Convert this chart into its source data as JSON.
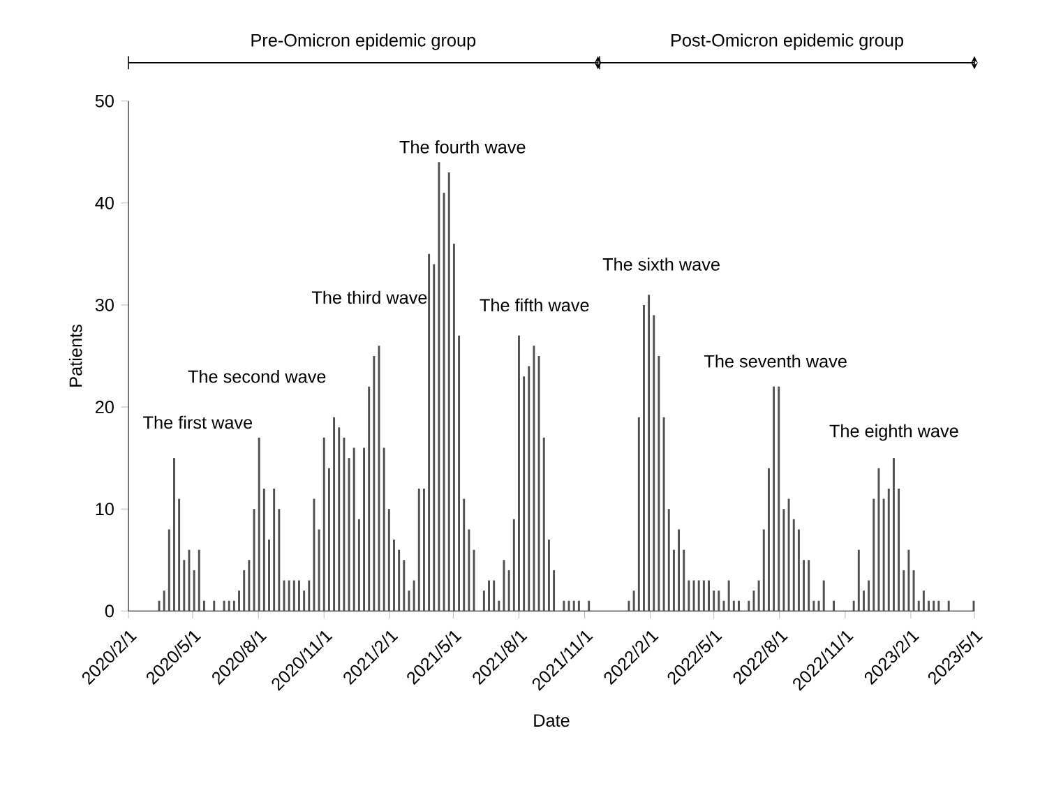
{
  "chart_data": {
    "type": "bar",
    "xlabel": "Date",
    "ylabel": "Patients",
    "color": "#505050",
    "x": [
      "2020-03-15",
      "2020-03-22",
      "2020-03-29",
      "2020-04-05",
      "2020-04-12",
      "2020-04-19",
      "2020-04-26",
      "2020-05-03",
      "2020-05-10",
      "2020-05-17",
      "2020-05-31",
      "2020-06-14",
      "2020-06-21",
      "2020-06-28",
      "2020-07-05",
      "2020-07-12",
      "2020-07-19",
      "2020-07-26",
      "2020-08-02",
      "2020-08-09",
      "2020-08-16",
      "2020-08-23",
      "2020-08-30",
      "2020-09-06",
      "2020-09-13",
      "2020-09-20",
      "2020-09-27",
      "2020-10-04",
      "2020-10-11",
      "2020-10-18",
      "2020-10-25",
      "2020-11-01",
      "2020-11-08",
      "2020-11-15",
      "2020-11-22",
      "2020-11-29",
      "2020-12-06",
      "2020-12-13",
      "2020-12-20",
      "2020-12-27",
      "2021-01-03",
      "2021-01-10",
      "2021-01-17",
      "2021-01-24",
      "2021-01-31",
      "2021-02-07",
      "2021-02-14",
      "2021-02-21",
      "2021-02-28",
      "2021-03-07",
      "2021-03-14",
      "2021-03-21",
      "2021-03-28",
      "2021-04-04",
      "2021-04-11",
      "2021-04-18",
      "2021-04-25",
      "2021-05-02",
      "2021-05-09",
      "2021-05-16",
      "2021-05-23",
      "2021-05-30",
      "2021-06-13",
      "2021-06-20",
      "2021-06-27",
      "2021-07-04",
      "2021-07-11",
      "2021-07-18",
      "2021-07-25",
      "2021-08-01",
      "2021-08-08",
      "2021-08-15",
      "2021-08-22",
      "2021-08-29",
      "2021-09-05",
      "2021-09-12",
      "2021-09-19",
      "2021-10-03",
      "2021-10-10",
      "2021-10-17",
      "2021-10-24",
      "2021-11-07",
      "2022-01-02",
      "2022-01-09",
      "2022-01-16",
      "2022-01-23",
      "2022-01-30",
      "2022-02-06",
      "2022-02-13",
      "2022-02-20",
      "2022-02-27",
      "2022-03-06",
      "2022-03-13",
      "2022-03-20",
      "2022-03-27",
      "2022-04-03",
      "2022-04-10",
      "2022-04-17",
      "2022-04-24",
      "2022-05-01",
      "2022-05-08",
      "2022-05-15",
      "2022-05-22",
      "2022-05-29",
      "2022-06-05",
      "2022-06-19",
      "2022-06-26",
      "2022-07-03",
      "2022-07-10",
      "2022-07-17",
      "2022-07-24",
      "2022-07-31",
      "2022-08-07",
      "2022-08-14",
      "2022-08-21",
      "2022-08-28",
      "2022-09-04",
      "2022-09-11",
      "2022-09-18",
      "2022-09-25",
      "2022-10-02",
      "2022-10-16",
      "2022-11-13",
      "2022-11-20",
      "2022-11-27",
      "2022-12-04",
      "2022-12-11",
      "2022-12-18",
      "2022-12-25",
      "2023-01-01",
      "2023-01-08",
      "2023-01-15",
      "2023-01-22",
      "2023-01-29",
      "2023-02-05",
      "2023-02-12",
      "2023-02-19",
      "2023-02-26",
      "2023-03-05",
      "2023-03-12",
      "2023-03-26",
      "2023-04-30"
    ],
    "values": [
      1,
      2,
      8,
      15,
      11,
      5,
      6,
      4,
      6,
      1,
      1,
      1,
      1,
      1,
      2,
      4,
      5,
      10,
      17,
      12,
      7,
      12,
      10,
      3,
      3,
      3,
      3,
      2,
      3,
      11,
      8,
      17,
      14,
      19,
      18,
      17,
      15,
      16,
      9,
      16,
      22,
      25,
      26,
      16,
      10,
      7,
      6,
      5,
      2,
      3,
      12,
      12,
      35,
      34,
      44,
      41,
      43,
      36,
      27,
      11,
      8,
      6,
      2,
      3,
      3,
      1,
      5,
      4,
      9,
      27,
      23,
      24,
      26,
      25,
      17,
      7,
      4,
      1,
      1,
      1,
      1,
      1,
      1,
      2,
      19,
      30,
      31,
      29,
      25,
      19,
      10,
      6,
      8,
      6,
      3,
      3,
      3,
      3,
      3,
      2,
      2,
      1,
      3,
      1,
      1,
      1,
      2,
      3,
      8,
      14,
      22,
      22,
      10,
      11,
      9,
      8,
      5,
      5,
      1,
      1,
      3,
      1,
      1,
      6,
      2,
      3,
      11,
      14,
      11,
      12,
      15,
      12,
      4,
      6,
      4,
      1,
      2,
      1,
      1,
      1,
      1,
      1
    ],
    "xlim": [
      "2020-02-01",
      "2023-05-01"
    ],
    "xticks": [
      {
        "value": "2020-02-01",
        "label": "2020/2/1"
      },
      {
        "value": "2020-05-01",
        "label": "2020/5/1"
      },
      {
        "value": "2020-08-01",
        "label": "2020/8/1"
      },
      {
        "value": "2020-11-01",
        "label": "2020/11/1"
      },
      {
        "value": "2021-02-01",
        "label": "2021/2/1"
      },
      {
        "value": "2021-05-01",
        "label": "2021/5/1"
      },
      {
        "value": "2021-08-01",
        "label": "2021/8/1"
      },
      {
        "value": "2021-11-01",
        "label": "2021/11/1"
      },
      {
        "value": "2022-02-01",
        "label": "2022/2/1"
      },
      {
        "value": "2022-05-01",
        "label": "2022/5/1"
      },
      {
        "value": "2022-08-01",
        "label": "2022/8/1"
      },
      {
        "value": "2022-11-01",
        "label": "2022/11/1"
      },
      {
        "value": "2023-02-01",
        "label": "2023/2/1"
      },
      {
        "value": "2023-05-01",
        "label": "2023/5/1"
      }
    ],
    "ylim": [
      0,
      50
    ],
    "yticks": [
      0,
      10,
      20,
      30,
      40,
      50
    ],
    "annotations": [
      "Pre-Omicron epidemic group",
      "Post-Omicron epidemic group",
      "The first wave",
      "The second wave",
      "The third wave",
      "The fourth wave",
      "The fifth wave",
      "The sixth wave",
      "The seventh wave",
      "The eighth wave"
    ]
  }
}
